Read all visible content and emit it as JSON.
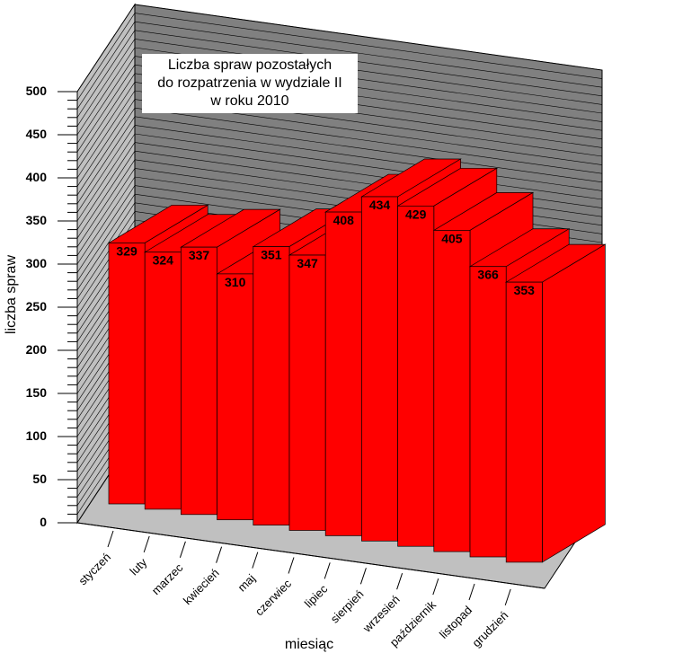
{
  "chart_data": {
    "type": "bar",
    "title": [
      "Liczba spraw pozostałych",
      "do rozpatrzenia w  wydziale II",
      "w roku 2010"
    ],
    "xlabel": "miesiąc",
    "ylabel": "liczba spraw",
    "ylim": [
      0,
      500
    ],
    "yticks": [
      0,
      50,
      100,
      150,
      200,
      250,
      300,
      350,
      400,
      450,
      500
    ],
    "categories": [
      "styczeń",
      "luty",
      "marzec",
      "kwiecień",
      "maj",
      "czerwiec",
      "lipiec",
      "sierpień",
      "wrzesień",
      "październik",
      "listopad",
      "grudzień"
    ],
    "values": [
      329,
      324,
      337,
      310,
      351,
      347,
      408,
      434,
      429,
      405,
      366,
      353
    ],
    "grid": true,
    "bar_color": "#ff0000",
    "wall_color": "#808080",
    "floor_color": "#c0c0c0"
  }
}
